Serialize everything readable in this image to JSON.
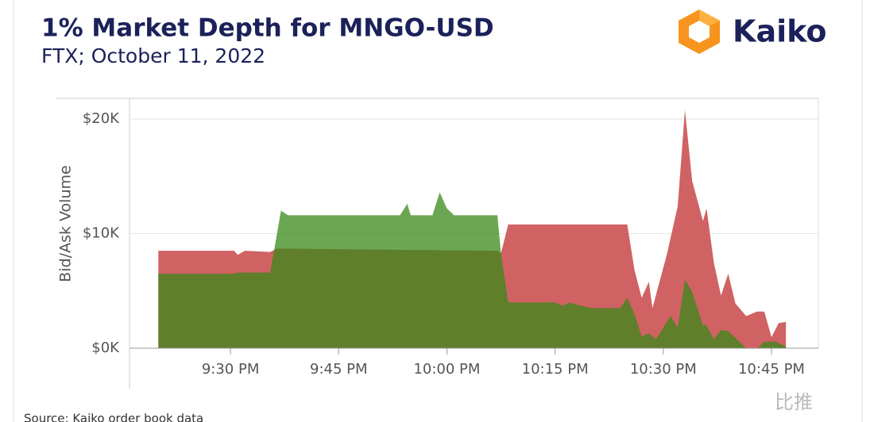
{
  "brand": "Kaiko",
  "source": "Source: Kaiko order book data",
  "watermark": "比推",
  "chart_data": {
    "type": "area",
    "title": "1% Market Depth for MNGO-USD",
    "subtitle": "FTX; October 11, 2022",
    "y_label": "Bid/Ask Volume",
    "xlim": [
      1276,
      1371.5
    ],
    "xticks": [
      {
        "value": 1290,
        "label": "9:30 PM"
      },
      {
        "value": 1305,
        "label": "9:45 PM"
      },
      {
        "value": 1320,
        "label": "10:00 PM"
      },
      {
        "value": 1335,
        "label": "10:15 PM"
      },
      {
        "value": 1350,
        "label": "10:30 PM"
      },
      {
        "value": 1365,
        "label": "10:45 PM"
      }
    ],
    "ylim": [
      0,
      21800
    ],
    "yticks": [
      {
        "value": 0,
        "label": "$0K"
      },
      {
        "value": 10000,
        "label": "$10K"
      },
      {
        "value": 20000,
        "label": "$20K"
      }
    ],
    "grid": true,
    "series": [
      {
        "color": "#cd5a5c",
        "x": [
          1280,
          1290.5,
          1291,
          1292,
          1295.5,
          1296.5,
          1327,
          1327.5,
          1328.5,
          1345,
          1346,
          1347,
          1348,
          1348.5,
          1350.5,
          1352,
          1353,
          1354,
          1355.5,
          1356,
          1357,
          1358,
          1359,
          1360,
          1361.5,
          1363,
          1364,
          1365,
          1366,
          1367
        ],
        "values": [
          8500,
          8500,
          8150,
          8500,
          8400,
          8700,
          8500,
          8300,
          10800,
          10800,
          6850,
          4400,
          5800,
          3500,
          8200,
          12400,
          20800,
          14600,
          11100,
          12200,
          7500,
          4600,
          6500,
          3900,
          2800,
          3200,
          3200,
          970,
          2200,
          2300
        ]
      },
      {
        "color": "#3a8a18",
        "x": [
          1280,
          1290.5,
          1291,
          1295.5,
          1297,
          1298,
          1313.5,
          1314.5,
          1315,
          1318,
          1319,
          1320,
          1321,
          1327,
          1327.5,
          1328.5,
          1335,
          1336,
          1337,
          1338,
          1340,
          1344,
          1345,
          1346,
          1347,
          1348,
          1349,
          1350,
          1351,
          1352,
          1353,
          1354,
          1355.5,
          1356,
          1357,
          1358,
          1359,
          1361.5,
          1363,
          1364,
          1365.5,
          1367
        ],
        "values": [
          6500,
          6500,
          6600,
          6600,
          12000,
          11600,
          11600,
          12600,
          11600,
          11600,
          13600,
          12200,
          11600,
          11600,
          8300,
          4000,
          4000,
          3700,
          4000,
          3800,
          3500,
          3500,
          4400,
          3000,
          1000,
          1300,
          800,
          1800,
          2800,
          1800,
          6000,
          4900,
          2000,
          2000,
          800,
          1600,
          1500,
          0,
          0,
          550,
          600,
          150
        ]
      }
    ]
  }
}
